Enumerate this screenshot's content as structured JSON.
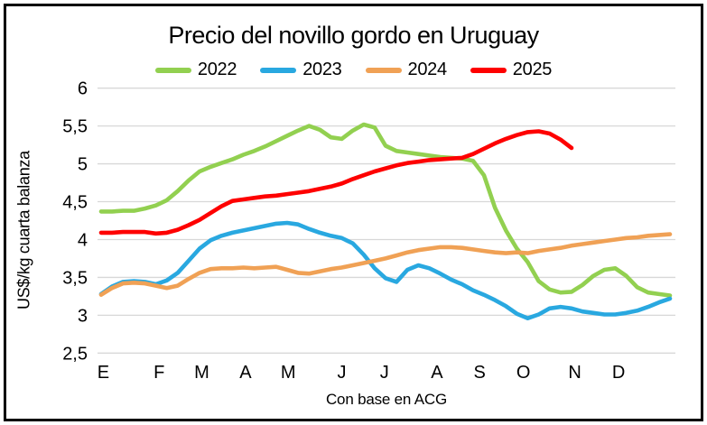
{
  "chart_data": {
    "type": "line",
    "title": "Precio del novillo gordo en Uruguay",
    "x_axis": {
      "label": "Con base en ACG",
      "tick_labels": [
        "E",
        "F",
        "M",
        "A",
        "M",
        "J",
        "J",
        "A",
        "S",
        "O",
        "N",
        "D"
      ],
      "tick_week_positions": [
        0.2,
        5.3,
        9.2,
        13.2,
        17.1,
        22.0,
        25.9,
        30.7,
        34.6,
        38.6,
        43.3,
        47.3
      ]
    },
    "y_axis": {
      "label": "US$/kg cuarta balanza",
      "tick_labels": [
        "6",
        "5,5",
        "5",
        "4,5",
        "4",
        "3,5",
        "3",
        "2,5"
      ],
      "tick_values": [
        6,
        5.5,
        5,
        4.5,
        4,
        3.5,
        3,
        2.5
      ],
      "range": [
        2.5,
        6
      ]
    },
    "legend": {
      "position": "top",
      "entries": [
        "2022",
        "2023",
        "2024",
        "2025"
      ]
    },
    "grid": true,
    "grid_color": "#d8d8d8",
    "x_unit": "weekly points, 52 weeks Jan-Dec",
    "series": [
      {
        "name": "2022",
        "color": "#92D050",
        "values": [
          4.37,
          4.37,
          4.38,
          4.38,
          4.41,
          4.45,
          4.52,
          4.64,
          4.78,
          4.9,
          4.96,
          5.01,
          5.06,
          5.12,
          5.17,
          5.23,
          5.3,
          5.37,
          5.44,
          5.5,
          5.45,
          5.35,
          5.33,
          5.44,
          5.52,
          5.48,
          5.24,
          5.17,
          5.15,
          5.13,
          5.11,
          5.09,
          5.08,
          5.07,
          5.04,
          4.85,
          4.42,
          4.12,
          3.88,
          3.7,
          3.45,
          3.34,
          3.3,
          3.31,
          3.4,
          3.52,
          3.6,
          3.62,
          3.52,
          3.37,
          3.3,
          3.28,
          3.26
        ]
      },
      {
        "name": "2023",
        "color": "#29A8E0",
        "values": [
          3.28,
          3.38,
          3.44,
          3.45,
          3.44,
          3.41,
          3.46,
          3.56,
          3.72,
          3.88,
          3.99,
          4.05,
          4.09,
          4.12,
          4.15,
          4.18,
          4.21,
          4.22,
          4.2,
          4.14,
          4.09,
          4.05,
          4.02,
          3.95,
          3.8,
          3.62,
          3.49,
          3.44,
          3.6,
          3.66,
          3.62,
          3.55,
          3.47,
          3.41,
          3.33,
          3.27,
          3.2,
          3.12,
          3.02,
          2.96,
          3.01,
          3.09,
          3.11,
          3.09,
          3.05,
          3.03,
          3.01,
          3.01,
          3.03,
          3.06,
          3.11,
          3.17,
          3.22
        ]
      },
      {
        "name": "2024",
        "color": "#F0A155",
        "values": [
          3.27,
          3.36,
          3.42,
          3.43,
          3.42,
          3.39,
          3.36,
          3.39,
          3.48,
          3.56,
          3.61,
          3.62,
          3.62,
          3.63,
          3.62,
          3.63,
          3.64,
          3.6,
          3.56,
          3.55,
          3.58,
          3.61,
          3.63,
          3.66,
          3.69,
          3.72,
          3.75,
          3.79,
          3.83,
          3.86,
          3.88,
          3.9,
          3.9,
          3.89,
          3.87,
          3.85,
          3.83,
          3.82,
          3.83,
          3.82,
          3.85,
          3.87,
          3.89,
          3.92,
          3.94,
          3.96,
          3.98,
          4.0,
          4.02,
          4.03,
          4.05,
          4.06,
          4.07
        ]
      },
      {
        "name": "2025",
        "color": "#FE0000",
        "values": [
          4.09,
          4.09,
          4.1,
          4.1,
          4.1,
          4.08,
          4.09,
          4.13,
          4.19,
          4.26,
          4.35,
          4.44,
          4.51,
          4.53,
          4.55,
          4.57,
          4.58,
          4.6,
          4.62,
          4.64,
          4.67,
          4.7,
          4.74,
          4.8,
          4.85,
          4.9,
          4.94,
          4.98,
          5.01,
          5.03,
          5.05,
          5.06,
          5.07,
          5.08,
          5.13,
          5.2,
          5.27,
          5.33,
          5.38,
          5.42,
          5.43,
          5.4,
          5.32,
          5.21
        ]
      }
    ]
  }
}
